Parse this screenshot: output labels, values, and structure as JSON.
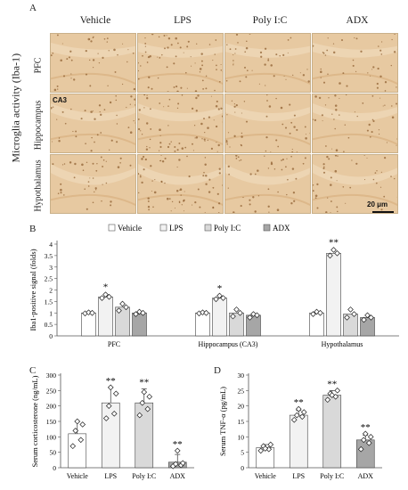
{
  "figure": {
    "panel_a": {
      "letter": "A",
      "y_label": "Microglia activity (Iba-1)",
      "columns": [
        "Vehicle",
        "LPS",
        "Poly I:C",
        "ADX"
      ],
      "rows": [
        "PFC",
        "Hippocampus",
        "Hypothalamus"
      ],
      "inset_label": "CA3",
      "scale_bar": "20 μm",
      "tile_color": "#e7c9a1"
    },
    "panel_b_letter": "B",
    "panel_c_letter": "C",
    "panel_d_letter": "D"
  },
  "chart_data": [
    {
      "id": "B",
      "type": "bar",
      "ylabel": "Iba1-positive signal (folds)",
      "ylim": [
        0,
        4
      ],
      "yticks": [
        "0",
        "0.5",
        "1",
        "1.5",
        "2",
        "2.5",
        "3",
        "3.5",
        "4"
      ],
      "legend_position": "top",
      "legend": [
        "Vehicle",
        "LPS",
        "Poly I:C",
        "ADX"
      ],
      "colors": [
        "#ffffff",
        "#f2f2f2",
        "#d9d9d9",
        "#a6a6a6"
      ],
      "categories": [
        "PFC",
        "Hippocampus (CA3)",
        "Hypothalamus"
      ],
      "values": [
        [
          1.0,
          1.7,
          1.25,
          1.0
        ],
        [
          1.0,
          1.65,
          1.0,
          0.9
        ],
        [
          1.0,
          3.6,
          0.95,
          0.8
        ]
      ],
      "points": [
        [
          [
            0.98,
            1.02,
            1.0
          ],
          [
            1.65,
            1.8,
            1.7
          ],
          [
            1.1,
            1.4,
            1.25
          ],
          [
            0.95,
            1.05,
            1.0
          ]
        ],
        [
          [
            0.98,
            1.02,
            1.0
          ],
          [
            1.6,
            1.75,
            1.65
          ],
          [
            0.85,
            1.15,
            1.0
          ],
          [
            0.8,
            0.95,
            0.9
          ]
        ],
        [
          [
            0.95,
            1.05,
            1.0
          ],
          [
            3.5,
            3.75,
            3.6
          ],
          [
            0.8,
            1.15,
            0.95
          ],
          [
            0.7,
            0.9,
            0.8
          ]
        ]
      ],
      "significance": [
        [
          "",
          "*",
          "",
          ""
        ],
        [
          "",
          "*",
          "",
          ""
        ],
        [
          "",
          "**",
          "",
          ""
        ]
      ]
    },
    {
      "id": "C",
      "type": "bar",
      "ylabel": "Serum corticosterone (ng/mL)",
      "ylim": [
        0,
        300
      ],
      "yticks": [
        "0",
        "50",
        "100",
        "150",
        "200",
        "250",
        "300"
      ],
      "categories": [
        "Vehicle",
        "LPS",
        "Poly I:C",
        "ADX"
      ],
      "colors": [
        "#ffffff",
        "#f2f2f2",
        "#d9d9d9",
        "#a6a6a6"
      ],
      "values": [
        110,
        210,
        210,
        18
      ],
      "errors": [
        40,
        50,
        45,
        25
      ],
      "points": [
        [
          70,
          90,
          120,
          140,
          150
        ],
        [
          160,
          175,
          200,
          240,
          260
        ],
        [
          170,
          190,
          210,
          230,
          245
        ],
        [
          5,
          8,
          12,
          15,
          55
        ]
      ],
      "significance": [
        "",
        "**",
        "**",
        "**"
      ]
    },
    {
      "id": "D",
      "type": "bar",
      "ylabel": "Serum TNF-α (pg/mL)",
      "ylim": [
        0,
        30
      ],
      "yticks": [
        "0",
        "5",
        "10",
        "15",
        "20",
        "25",
        "30"
      ],
      "categories": [
        "Vehicle",
        "LPS",
        "Poly I:C",
        "ADX"
      ],
      "colors": [
        "#ffffff",
        "#f2f2f2",
        "#d9d9d9",
        "#a6a6a6"
      ],
      "values": [
        6.5,
        17,
        23.5,
        9
      ],
      "errors": [
        1,
        1.5,
        1.5,
        1.5
      ],
      "points": [
        [
          5.5,
          6,
          7,
          7.5,
          6.2
        ],
        [
          15.5,
          16.5,
          17,
          18,
          19
        ],
        [
          22,
          23,
          24,
          25,
          23.5
        ],
        [
          6,
          8,
          9,
          10,
          11
        ]
      ],
      "significance": [
        "",
        "**",
        "**",
        "**"
      ]
    }
  ]
}
